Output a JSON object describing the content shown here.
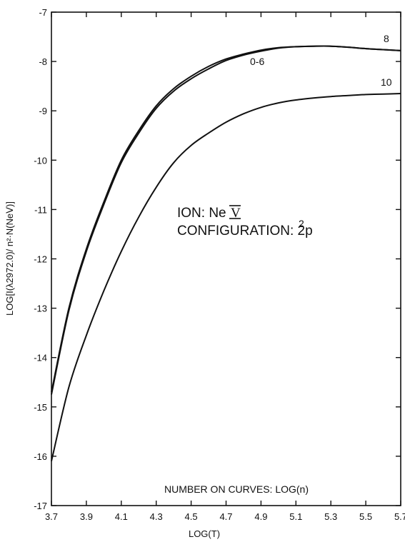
{
  "chart_data": {
    "type": "line",
    "title": "",
    "xlabel": "LOG(T)",
    "ylabel": "LOG[I(λ2972.0)/ n²·N(NeⅤ)]",
    "xlim": [
      3.7,
      5.7
    ],
    "ylim": [
      -17,
      -7
    ],
    "x_ticks": [
      "3.7",
      "3.9",
      "4.1",
      "4.3",
      "4.5",
      "4.7",
      "4.9",
      "5.1",
      "5.3",
      "5.5",
      "5.7"
    ],
    "y_ticks": [
      "-7",
      "-8",
      "-9",
      "-10",
      "-11",
      "-12",
      "-13",
      "-14",
      "-15",
      "-16",
      "-17"
    ],
    "grid": false,
    "series": [
      {
        "name": "0-6",
        "x": [
          3.7,
          3.8,
          3.9,
          4.0,
          4.1,
          4.2,
          4.3,
          4.4,
          4.5,
          4.6,
          4.7,
          4.8,
          4.9,
          5.0,
          5.1,
          5.2,
          5.3,
          5.4,
          5.5,
          5.6,
          5.7
        ],
        "y": [
          -14.7,
          -13.0,
          -11.8,
          -10.85,
          -10.0,
          -9.4,
          -8.9,
          -8.55,
          -8.3,
          -8.1,
          -7.95,
          -7.85,
          -7.77,
          -7.72,
          -7.7,
          -7.69,
          -7.69,
          -7.71,
          -7.74,
          -7.76,
          -7.78
        ]
      },
      {
        "name": "8",
        "x": [
          3.7,
          3.8,
          3.9,
          4.0,
          4.1,
          4.2,
          4.3,
          4.4,
          4.5,
          4.6,
          4.7,
          4.8,
          4.9,
          5.0,
          5.1,
          5.2,
          5.3,
          5.4,
          5.5,
          5.6,
          5.7
        ],
        "y": [
          -14.75,
          -13.05,
          -11.85,
          -10.9,
          -10.05,
          -9.45,
          -8.95,
          -8.6,
          -8.35,
          -8.15,
          -7.98,
          -7.87,
          -7.79,
          -7.73,
          -7.7,
          -7.69,
          -7.69,
          -7.71,
          -7.74,
          -7.76,
          -7.78
        ]
      },
      {
        "name": "10",
        "x": [
          3.7,
          3.8,
          3.9,
          4.0,
          4.1,
          4.2,
          4.3,
          4.4,
          4.5,
          4.6,
          4.7,
          4.8,
          4.9,
          5.0,
          5.1,
          5.2,
          5.3,
          5.4,
          5.5,
          5.6,
          5.7
        ],
        "y": [
          -16.1,
          -14.6,
          -13.55,
          -12.65,
          -11.85,
          -11.15,
          -10.55,
          -10.05,
          -9.7,
          -9.45,
          -9.23,
          -9.06,
          -8.93,
          -8.84,
          -8.78,
          -8.74,
          -8.71,
          -8.69,
          -8.67,
          -8.66,
          -8.65
        ]
      }
    ],
    "annotations": {
      "ion_label": "ION: Ne",
      "ion_numeral": "V",
      "config_label": "CONFIGURATION: 2p",
      "config_sup": "2",
      "note": "NUMBER ON CURVES: LOG(n)"
    }
  }
}
